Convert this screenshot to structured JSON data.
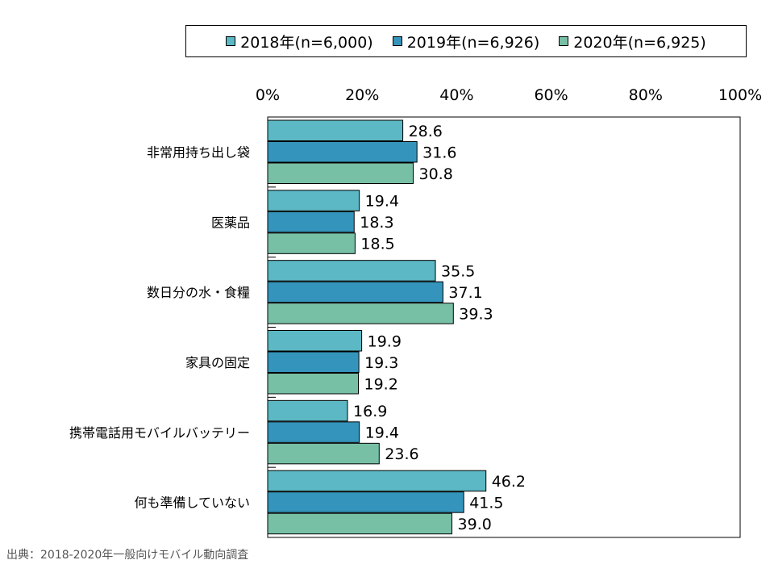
{
  "chart_data": {
    "type": "bar",
    "orientation": "horizontal",
    "categories": [
      "非常用持ち出し袋",
      "医薬品",
      "数日分の水・食糧",
      "家具の固定",
      "携帯電話用モバイルバッテリー",
      "何も準備していない"
    ],
    "series": [
      {
        "name": "2018年(n=6,000)",
        "color": "#5bb8c4",
        "values": [
          28.6,
          19.4,
          35.5,
          19.9,
          16.9,
          46.2
        ],
        "labels": [
          "28.6",
          "19.4",
          "35.5",
          "19.9",
          "16.9",
          "46.2"
        ]
      },
      {
        "name": "2019年(n=6,926)",
        "color": "#3494bb",
        "values": [
          31.6,
          18.3,
          37.1,
          19.3,
          19.4,
          41.5
        ],
        "labels": [
          "31.6",
          "18.3",
          "37.1",
          "19.3",
          "19.4",
          "41.5"
        ]
      },
      {
        "name": "2020年(n=6,925)",
        "color": "#77c0a6",
        "values": [
          30.8,
          18.5,
          39.3,
          19.2,
          23.6,
          39.0
        ],
        "labels": [
          "30.8",
          "18.5",
          "39.3",
          "19.2",
          "23.6",
          "39.0"
        ]
      }
    ],
    "xlim": [
      0,
      100
    ],
    "x_ticks": [
      0,
      20,
      40,
      60,
      80,
      100
    ],
    "x_tick_labels": [
      "0%",
      "20%",
      "40%",
      "60%",
      "80%",
      "100%"
    ],
    "grid": false,
    "legend_position": "top"
  },
  "source_note": "出典：2018-2020年一般向けモバイル動向調査"
}
